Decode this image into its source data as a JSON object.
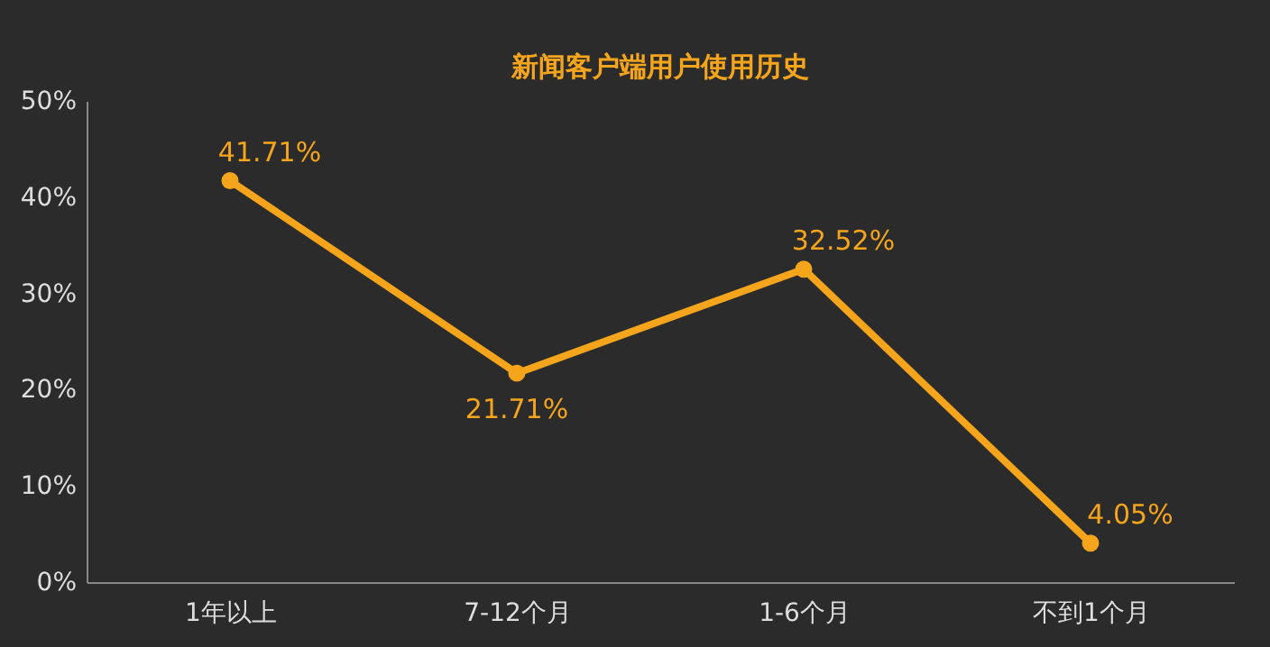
{
  "chart_data": {
    "type": "line",
    "title": "新闻客户端用户使用历史",
    "categories": [
      "1年以上",
      "7-12个月",
      "1-6个月",
      "不到1个月"
    ],
    "series": [
      {
        "color": "#f5a51c",
        "values": [
          41.71,
          21.71,
          32.52,
          4.05
        ]
      }
    ],
    "ylim": [
      0,
      50
    ],
    "yticks": [
      {
        "value": 0,
        "label": "0%"
      },
      {
        "value": 10,
        "label": "10%"
      },
      {
        "value": 20,
        "label": "20%"
      },
      {
        "value": 30,
        "label": "30%"
      },
      {
        "value": 40,
        "label": "40%"
      },
      {
        "value": 50,
        "label": "50%"
      }
    ],
    "value_labels": [
      "41.71%",
      "21.71%",
      "32.52%",
      "4.05%"
    ],
    "marker": "circle",
    "line_style": "solid",
    "grid": false
  }
}
